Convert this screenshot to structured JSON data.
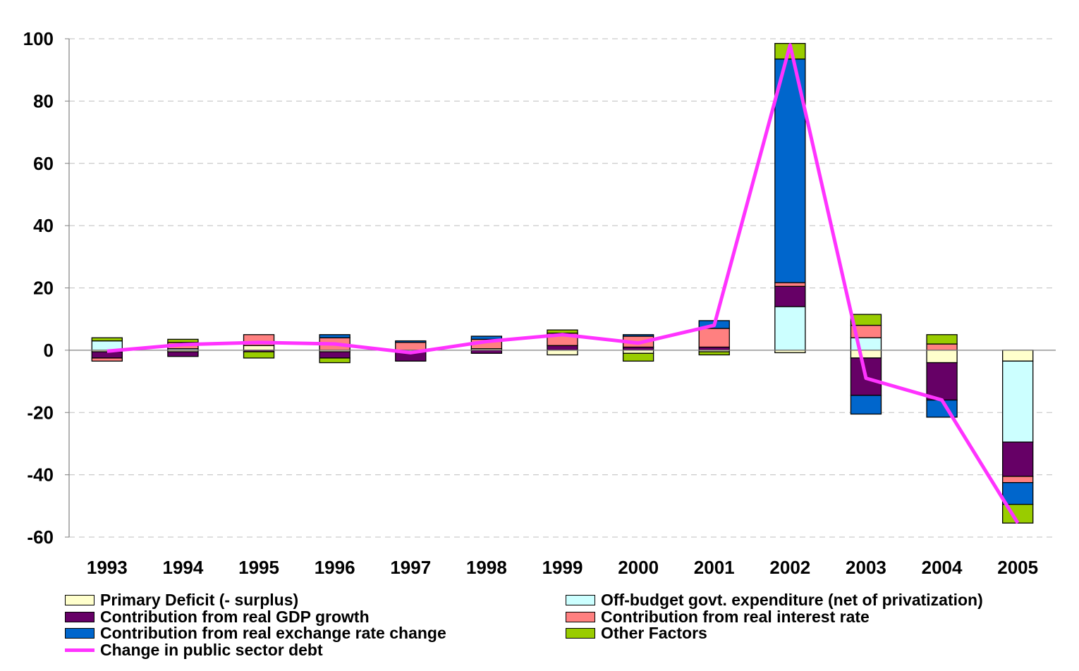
{
  "chart_data": {
    "type": "bar",
    "stacked": true,
    "categories": [
      "1993",
      "1994",
      "1995",
      "1996",
      "1997",
      "1998",
      "1999",
      "2000",
      "2001",
      "2002",
      "2003",
      "2004",
      "2005"
    ],
    "ylim": [
      -60,
      100
    ],
    "yticks": [
      100,
      80,
      60,
      40,
      20,
      0,
      -20,
      -40,
      -60
    ],
    "grid": true,
    "legend_position": "bottom",
    "series": [
      {
        "name": "Primary Deficit (- surplus)",
        "color": "#FFFFCC",
        "values": [
          -0.5,
          -0.5,
          1.5,
          -0.5,
          -0.5,
          0.5,
          -1.5,
          -1.0,
          -0.5,
          -0.8,
          -2.5,
          -4.0,
          -3.5
        ]
      },
      {
        "name": "Off-budget govt. expenditure (net of privatization)",
        "color": "#CCFFFF",
        "values": [
          3.0,
          0.5,
          0.0,
          0.0,
          0.0,
          0.0,
          0.0,
          0.0,
          0.0,
          14.0,
          4.0,
          0.0,
          -26.0
        ]
      },
      {
        "name": "Contribution from real GDP growth",
        "color": "#660066",
        "values": [
          -2.0,
          -1.5,
          -0.5,
          -2.0,
          -3.0,
          -1.0,
          1.5,
          1.0,
          1.0,
          6.5,
          -12.0,
          -12.0,
          -11.0
        ]
      },
      {
        "name": "Contribution from real interest rate",
        "color": "#FF8080",
        "values": [
          -1.0,
          2.0,
          3.5,
          4.0,
          2.5,
          3.0,
          4.0,
          3.5,
          6.0,
          1.2,
          4.0,
          2.0,
          -2.0
        ]
      },
      {
        "name": "Contribution from real exchange rate change",
        "color": "#0066CC",
        "values": [
          0.0,
          0.0,
          0.0,
          1.0,
          0.5,
          1.0,
          0.0,
          0.5,
          2.5,
          71.8,
          -6.0,
          -5.5,
          -7.0
        ]
      },
      {
        "name": "Other Factors",
        "color": "#99CC00",
        "values": [
          1.0,
          1.0,
          -2.0,
          -1.5,
          0.0,
          0.0,
          1.0,
          -2.5,
          -1.0,
          5.0,
          3.5,
          3.0,
          -6.0
        ]
      }
    ],
    "line_series": {
      "name": "Change in public sector debt",
      "color": "#FF33FF",
      "values": [
        -0.3,
        1.8,
        2.5,
        2.0,
        -0.8,
        2.8,
        5.0,
        2.3,
        8.0,
        98.0,
        -9.0,
        -16.0,
        -55.5
      ]
    }
  }
}
